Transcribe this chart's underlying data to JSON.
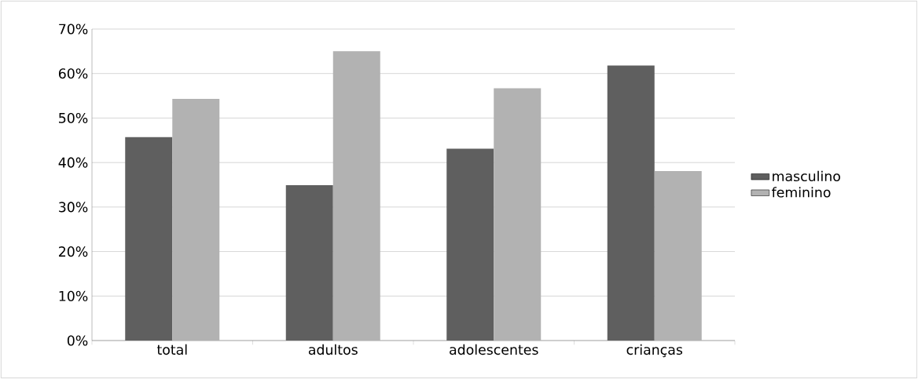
{
  "chart_data": {
    "type": "bar",
    "categories": [
      "total",
      "adultos",
      "adolescentes",
      "crianças"
    ],
    "series": [
      {
        "name": "masculino",
        "color": "#5f5f5f",
        "values": [
          45.7,
          34.9,
          43.1,
          61.8
        ]
      },
      {
        "name": "feminino",
        "color": "#b2b2b2",
        "values": [
          54.3,
          65.0,
          56.7,
          38.1
        ]
      }
    ],
    "ylim": [
      0,
      70
    ],
    "yticks": [
      {
        "value": 0,
        "label": "0%"
      },
      {
        "value": 10,
        "label": "10%"
      },
      {
        "value": 20,
        "label": "20%"
      },
      {
        "value": 30,
        "label": "30%"
      },
      {
        "value": 40,
        "label": "40%"
      },
      {
        "value": 50,
        "label": "50%"
      },
      {
        "value": 60,
        "label": "60%"
      },
      {
        "value": 70,
        "label": "70%"
      }
    ],
    "grid": "y",
    "legend": "right"
  }
}
